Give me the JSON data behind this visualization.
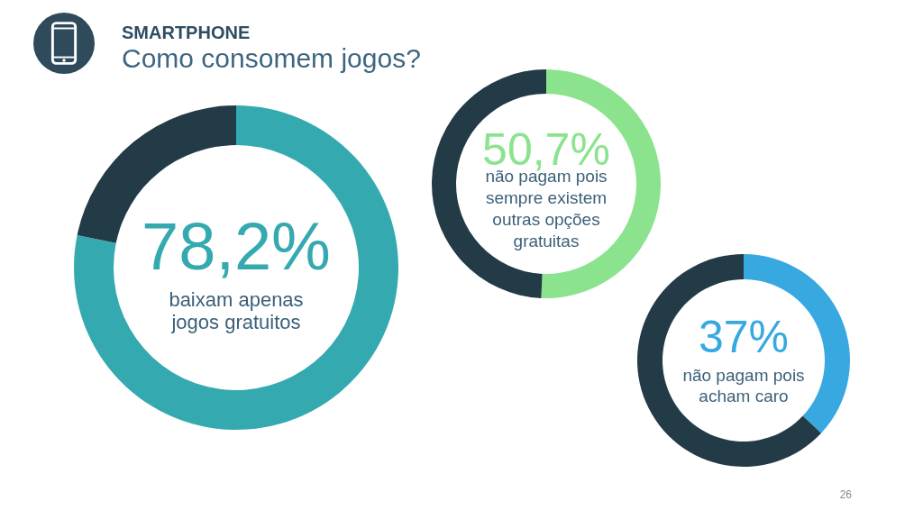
{
  "chart_data": [
    {
      "type": "donut",
      "title": "SMARTPHONE",
      "subtitle": "Como consomem jogos?",
      "categories": [
        "baixam apenas jogos gratuitos",
        null
      ],
      "values": [
        78.2,
        21.8
      ],
      "value_labels": [
        "78,2%",
        null
      ],
      "colors": [
        "#34aab0",
        "#223b47"
      ]
    },
    {
      "type": "donut",
      "categories": [
        "não pagam pois sempre existem outras opções gratuitas",
        null
      ],
      "values": [
        50.7,
        49.3
      ],
      "value_labels": [
        "50,7%",
        null
      ],
      "colors": [
        "#8be38e",
        "#223b47"
      ]
    },
    {
      "type": "donut",
      "categories": [
        "não pagam pois acham caro",
        null
      ],
      "values": [
        37,
        63
      ],
      "value_labels": [
        "37%",
        null
      ],
      "colors": [
        "#37a8e0",
        "#223b47"
      ],
      "annotations": [
        "26"
      ]
    }
  ]
}
